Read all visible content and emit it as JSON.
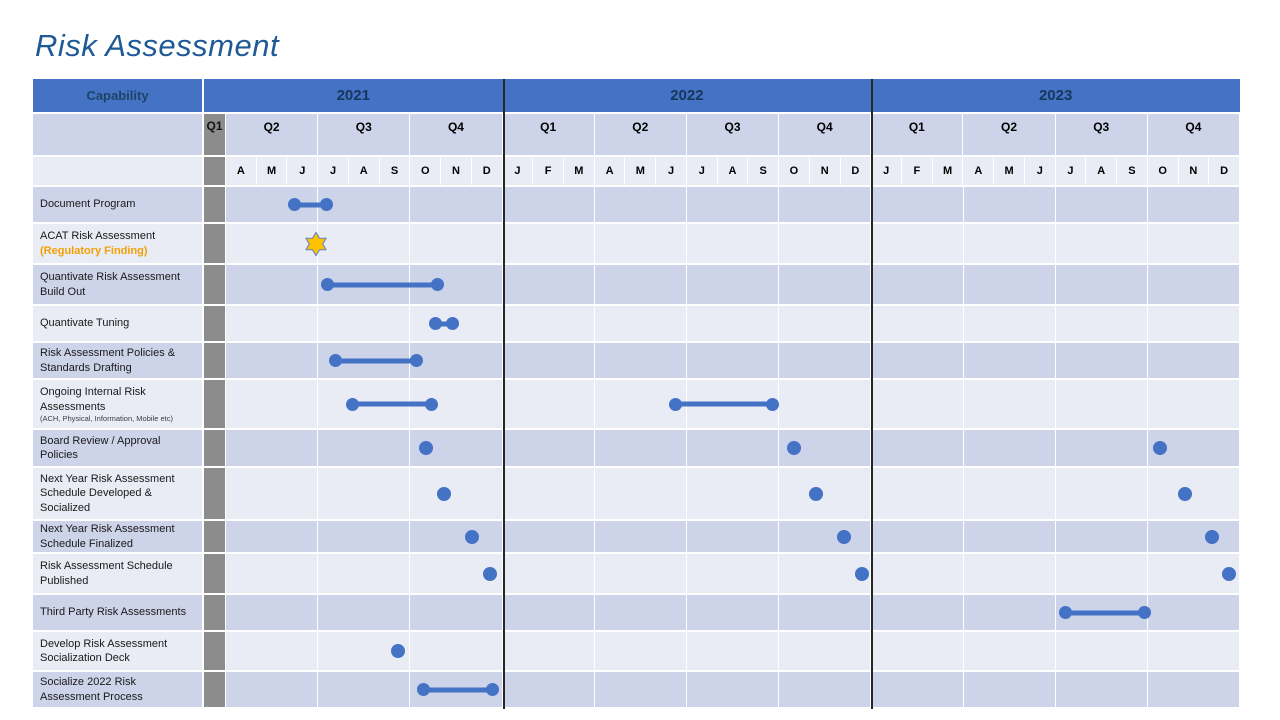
{
  "title": "Risk Assessment",
  "table": {
    "capability_header": "Capability",
    "years": [
      {
        "label": "2021",
        "quarters": [
          {
            "label": "Q1",
            "collapsed": true,
            "months": []
          },
          {
            "label": "Q2",
            "months": [
              "A",
              "M",
              "J"
            ]
          },
          {
            "label": "Q3",
            "months": [
              "J",
              "A",
              "S"
            ]
          },
          {
            "label": "Q4",
            "months": [
              "O",
              "N",
              "D"
            ]
          }
        ]
      },
      {
        "label": "2022",
        "quarters": [
          {
            "label": "Q1",
            "months": [
              "J",
              "F",
              "M"
            ]
          },
          {
            "label": "Q2",
            "months": [
              "A",
              "M",
              "J"
            ]
          },
          {
            "label": "Q3",
            "months": [
              "J",
              "A",
              "S"
            ]
          },
          {
            "label": "Q4",
            "months": [
              "O",
              "N",
              "D"
            ]
          }
        ]
      },
      {
        "label": "2023",
        "quarters": [
          {
            "label": "Q1",
            "months": [
              "J",
              "F",
              "M"
            ]
          },
          {
            "label": "Q2",
            "months": [
              "A",
              "M",
              "J"
            ]
          },
          {
            "label": "Q3",
            "months": [
              "J",
              "A",
              "S"
            ]
          },
          {
            "label": "Q4",
            "months": [
              "O",
              "N",
              "D"
            ]
          }
        ]
      }
    ]
  },
  "chart_data": {
    "type": "bar",
    "subtype": "gantt-timeline",
    "title": "Risk Assessment",
    "x_axis": {
      "unit": "month",
      "origin": "Apr 2021",
      "end": "Dec 2023",
      "total_months": 33,
      "note": "Q1 2021 is shown collapsed as a narrow gray column; year dividers after Dec 2021 and Dec 2022"
    },
    "legend": "month offsets are measured from the start of Apr 2021 (0) to the end of Dec 2023 (33)",
    "tasks": [
      {
        "label": "Document Program",
        "markers": [
          {
            "type": "bar",
            "from": 2.2,
            "to": 3.3,
            "approx": "early Jun 2021 to early Jul 2021"
          }
        ]
      },
      {
        "label": "ACAT Risk Assessment",
        "label_highlight": "(Regulatory Finding)",
        "markers": [
          {
            "type": "star",
            "at": 2.93,
            "approx": "end of Jun 2021"
          }
        ]
      },
      {
        "label": "Quantivate Risk Assessment Build Out",
        "markers": [
          {
            "type": "bar",
            "from": 3.3,
            "to": 6.9,
            "approx": "early Jul 2021 to late Oct 2021"
          }
        ]
      },
      {
        "label": "Quantivate Tuning",
        "markers": [
          {
            "type": "bar",
            "from": 6.8,
            "to": 7.4,
            "approx": "late Oct 2021 to mid Nov 2021"
          }
        ]
      },
      {
        "label": "Risk Assessment Policies & Standards Drafting",
        "markers": [
          {
            "type": "bar",
            "from": 3.55,
            "to": 6.2,
            "approx": "mid Jul 2021 to early Oct 2021"
          }
        ]
      },
      {
        "label": "Ongoing Internal Risk Assessments",
        "sublabel": "(ACH, Physical, Information,  Mobile etc)",
        "markers": [
          {
            "type": "bar",
            "from": 4.1,
            "to": 6.7,
            "approx": "Aug 2021 to late Oct 2021"
          },
          {
            "type": "bar",
            "from": 14.6,
            "to": 17.8,
            "approx": "mid Jun 2022 to late Sep 2022"
          }
        ]
      },
      {
        "label": "Board Review / Approval Policies",
        "markers": [
          {
            "type": "dot",
            "at": 6.5,
            "approx": "mid Oct 2021"
          },
          {
            "type": "dot",
            "at": 18.5,
            "approx": "mid Oct 2022"
          },
          {
            "type": "dot",
            "at": 30.4,
            "approx": "mid Oct 2023"
          }
        ]
      },
      {
        "label": "Next Year Risk Assessment Schedule Developed & Socialized",
        "markers": [
          {
            "type": "dot",
            "at": 7.1,
            "approx": "early Nov 2021"
          },
          {
            "type": "dot",
            "at": 19.2,
            "approx": "early Nov 2022"
          },
          {
            "type": "dot",
            "at": 31.2,
            "approx": "early Nov 2023"
          }
        ]
      },
      {
        "label": "Next Year Risk Assessment Schedule Finalized",
        "markers": [
          {
            "type": "dot",
            "at": 8.0,
            "approx": "start of Dec 2021"
          },
          {
            "type": "dot",
            "at": 20.1,
            "approx": "early Dec 2022"
          },
          {
            "type": "dot",
            "at": 32.1,
            "approx": "early Dec 2023"
          }
        ]
      },
      {
        "label": "Risk Assessment Schedule Published",
        "markers": [
          {
            "type": "dot",
            "at": 8.6,
            "approx": "mid Dec 2021"
          },
          {
            "type": "dot",
            "at": 20.7,
            "approx": "late Dec 2022"
          },
          {
            "type": "dot",
            "at": 32.65,
            "approx": "late Dec 2023"
          }
        ]
      },
      {
        "label": "Third Party Risk Assessments",
        "markers": [
          {
            "type": "bar",
            "from": 27.3,
            "to": 29.9,
            "approx": "mid Jul 2023 to late Sep 2023"
          }
        ]
      },
      {
        "label": "Develop Risk Assessment Socialization Deck",
        "markers": [
          {
            "type": "dot",
            "at": 5.6,
            "approx": "mid Sep 2021"
          }
        ]
      },
      {
        "label": "Socialize 2022 Risk Assessment Process",
        "markers": [
          {
            "type": "bar",
            "from": 6.4,
            "to": 8.7,
            "approx": "mid Oct 2021 to late Dec 2021"
          }
        ]
      }
    ]
  },
  "colors": {
    "header_blue": "#4472C4",
    "year_text": "#17375E",
    "capability_text": "#1F4466",
    "band_dark": "#CDD3E8",
    "band_light": "#E9EBF5",
    "gray_column": "#8C8C8C",
    "marker_blue": "#4472C4",
    "star_gold": "#FFC000",
    "star_outline": "#6B85C0",
    "highlight_orange": "#F2A104",
    "title_blue": "#1E5A96",
    "year_divider": "#262626"
  }
}
